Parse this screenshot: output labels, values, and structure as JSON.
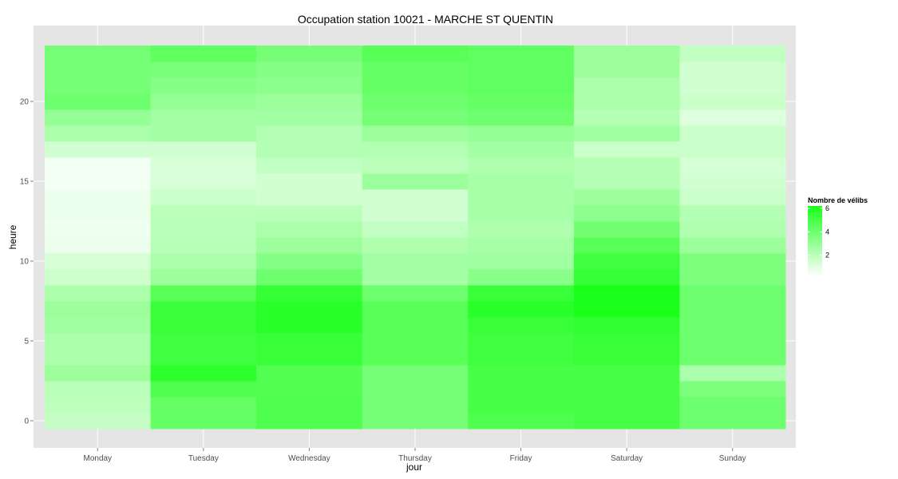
{
  "chart_data": {
    "type": "heatmap",
    "title": "Occupation station 10021 - MARCHE ST QUENTIN",
    "xlabel": "jour",
    "ylabel": "heure",
    "x_categories": [
      "Monday",
      "Tuesday",
      "Wednesday",
      "Thursday",
      "Friday",
      "Saturday",
      "Sunday"
    ],
    "y_ticks": [
      0,
      5,
      10,
      15,
      20
    ],
    "ylim": [
      -0.5,
      23.5
    ],
    "hours": [
      0,
      1,
      2,
      3,
      4,
      5,
      6,
      7,
      8,
      9,
      10,
      11,
      12,
      13,
      14,
      15,
      16,
      17,
      18,
      19,
      20,
      21,
      22,
      23
    ],
    "values": [
      [
        1.5,
        1.7,
        1.8,
        2.6,
        2.2,
        2.2,
        2.5,
        2.6,
        2.2,
        1.3,
        1.1,
        0.5,
        0.4,
        0.5,
        0.5,
        0.3,
        0.3,
        1.2,
        2.2,
        2.8,
        3.8,
        3.6,
        3.6,
        3.6
      ],
      [
        4.0,
        4.0,
        4.6,
        5.5,
        5.0,
        5.0,
        5.2,
        5.1,
        4.4,
        2.6,
        2.2,
        1.9,
        1.8,
        1.8,
        1.4,
        1.0,
        1.0,
        1.2,
        2.4,
        2.4,
        2.8,
        3.2,
        3.5,
        4.2
      ],
      [
        4.6,
        4.6,
        4.5,
        4.5,
        5.2,
        5.2,
        5.6,
        5.6,
        5.3,
        3.8,
        3.2,
        2.6,
        2.2,
        1.8,
        1.2,
        1.2,
        1.6,
        2.0,
        2.0,
        2.4,
        2.6,
        3.0,
        3.2,
        3.6
      ],
      [
        3.6,
        3.6,
        3.6,
        3.6,
        4.4,
        4.4,
        4.4,
        4.4,
        3.8,
        2.4,
        2.4,
        2.1,
        1.6,
        1.2,
        1.2,
        2.6,
        1.8,
        2.0,
        2.6,
        3.6,
        3.8,
        4.0,
        4.0,
        4.4
      ],
      [
        4.6,
        4.8,
        4.8,
        4.8,
        5.0,
        5.0,
        5.2,
        5.6,
        5.2,
        3.1,
        2.5,
        2.3,
        2.1,
        2.3,
        2.3,
        2.3,
        2.1,
        2.4,
        2.8,
        3.8,
        4.0,
        4.2,
        4.2,
        4.2
      ],
      [
        4.8,
        4.8,
        4.8,
        4.8,
        5.2,
        5.2,
        5.4,
        6.0,
        6.0,
        5.3,
        5.0,
        4.4,
        3.7,
        3.0,
        2.6,
        2.0,
        2.0,
        1.4,
        2.5,
        2.0,
        2.2,
        2.2,
        2.6,
        2.6
      ],
      [
        3.8,
        3.8,
        3.4,
        2.2,
        3.8,
        3.8,
        3.8,
        3.8,
        3.8,
        3.4,
        3.4,
        2.6,
        2.1,
        2.0,
        1.4,
        1.2,
        1.1,
        1.4,
        1.4,
        0.9,
        1.4,
        1.2,
        1.2,
        1.6
      ]
    ],
    "legend": {
      "title": "Nombre de vélibs",
      "ticks": [
        2,
        4,
        6
      ],
      "range": [
        0,
        6
      ],
      "low_color": "#ffffff",
      "high_color": "#1aff1a",
      "position": "right"
    },
    "panel_background": "#e5e5e5",
    "grid_color": "#ffffff",
    "grid": true
  }
}
